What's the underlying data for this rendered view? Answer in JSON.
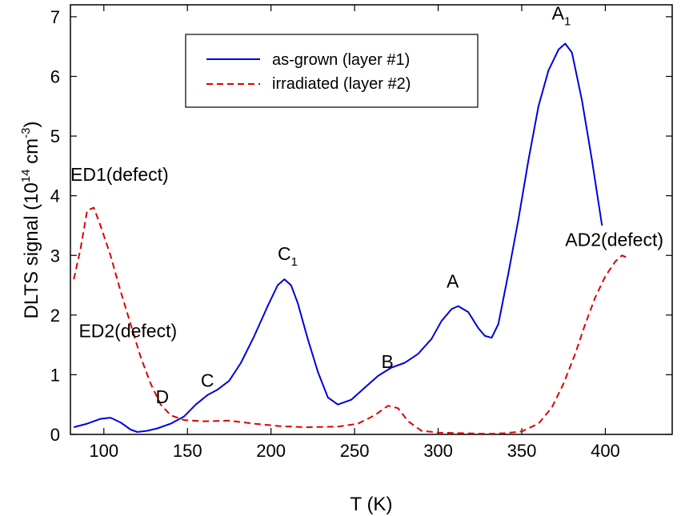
{
  "chart_data": {
    "type": "line",
    "xlabel": "T (K)",
    "ylabel_parts": [
      "DLTS signal (10",
      "14",
      " cm",
      "-3",
      ")"
    ],
    "xlim": [
      80,
      440
    ],
    "ylim": [
      0,
      7.2
    ],
    "x_ticks": [
      100,
      150,
      200,
      250,
      300,
      350,
      400
    ],
    "y_ticks": [
      0,
      1,
      2,
      3,
      4,
      5,
      6,
      7
    ],
    "grid": false,
    "legend_position": "top-left",
    "series": [
      {
        "name": "as-grown (layer #1)",
        "color": "#0000dd",
        "style": "solid",
        "points": [
          [
            82,
            0.12
          ],
          [
            90,
            0.18
          ],
          [
            98,
            0.26
          ],
          [
            104,
            0.28
          ],
          [
            110,
            0.2
          ],
          [
            116,
            0.08
          ],
          [
            120,
            0.04
          ],
          [
            126,
            0.06
          ],
          [
            132,
            0.1
          ],
          [
            140,
            0.18
          ],
          [
            148,
            0.3
          ],
          [
            155,
            0.5
          ],
          [
            162,
            0.66
          ],
          [
            168,
            0.75
          ],
          [
            175,
            0.9
          ],
          [
            182,
            1.2
          ],
          [
            190,
            1.65
          ],
          [
            198,
            2.15
          ],
          [
            204,
            2.5
          ],
          [
            208,
            2.6
          ],
          [
            212,
            2.5
          ],
          [
            216,
            2.2
          ],
          [
            222,
            1.6
          ],
          [
            228,
            1.05
          ],
          [
            234,
            0.62
          ],
          [
            240,
            0.5
          ],
          [
            248,
            0.58
          ],
          [
            256,
            0.78
          ],
          [
            264,
            0.98
          ],
          [
            272,
            1.12
          ],
          [
            280,
            1.2
          ],
          [
            288,
            1.35
          ],
          [
            296,
            1.6
          ],
          [
            302,
            1.9
          ],
          [
            308,
            2.1
          ],
          [
            312,
            2.15
          ],
          [
            318,
            2.05
          ],
          [
            324,
            1.78
          ],
          [
            328,
            1.65
          ],
          [
            332,
            1.62
          ],
          [
            336,
            1.85
          ],
          [
            342,
            2.7
          ],
          [
            348,
            3.6
          ],
          [
            354,
            4.6
          ],
          [
            360,
            5.5
          ],
          [
            366,
            6.1
          ],
          [
            372,
            6.45
          ],
          [
            376,
            6.55
          ],
          [
            380,
            6.4
          ],
          [
            386,
            5.6
          ],
          [
            392,
            4.6
          ],
          [
            398,
            3.5
          ]
        ]
      },
      {
        "name": "irradiated (layer #2)",
        "color": "#dd0000",
        "style": "dashed",
        "points": [
          [
            82,
            2.6
          ],
          [
            86,
            3.1
          ],
          [
            90,
            3.75
          ],
          [
            94,
            3.8
          ],
          [
            98,
            3.5
          ],
          [
            104,
            3.0
          ],
          [
            110,
            2.4
          ],
          [
            116,
            1.85
          ],
          [
            122,
            1.3
          ],
          [
            128,
            0.85
          ],
          [
            134,
            0.5
          ],
          [
            140,
            0.32
          ],
          [
            148,
            0.24
          ],
          [
            160,
            0.22
          ],
          [
            175,
            0.23
          ],
          [
            190,
            0.18
          ],
          [
            205,
            0.14
          ],
          [
            220,
            0.12
          ],
          [
            240,
            0.13
          ],
          [
            252,
            0.18
          ],
          [
            262,
            0.32
          ],
          [
            270,
            0.48
          ],
          [
            276,
            0.44
          ],
          [
            282,
            0.22
          ],
          [
            290,
            0.06
          ],
          [
            300,
            0.03
          ],
          [
            315,
            0.02
          ],
          [
            330,
            0.01
          ],
          [
            340,
            0.02
          ],
          [
            350,
            0.05
          ],
          [
            360,
            0.18
          ],
          [
            368,
            0.45
          ],
          [
            375,
            0.85
          ],
          [
            382,
            1.35
          ],
          [
            388,
            1.85
          ],
          [
            394,
            2.3
          ],
          [
            400,
            2.65
          ],
          [
            406,
            2.9
          ],
          [
            410,
            3.0
          ],
          [
            414,
            2.95
          ]
        ]
      }
    ],
    "annotations": [
      {
        "text": "ED1(defect)",
        "x": 80,
        "y": 4.25
      },
      {
        "text": "ED2(defect)",
        "x": 85,
        "y": 1.63
      },
      {
        "text": "D",
        "x": 131,
        "y": 0.52
      },
      {
        "text": "C",
        "x": 158,
        "y": 0.8
      },
      {
        "text": "C",
        "sub": "1",
        "x": 204,
        "y": 2.92
      },
      {
        "text": "B",
        "x": 266,
        "y": 1.11
      },
      {
        "text": "A",
        "x": 305,
        "y": 2.46
      },
      {
        "text": "A",
        "sub": "1",
        "x": 368,
        "y": 6.95
      },
      {
        "text": "AD2(defect)",
        "x": 376,
        "y": 3.16
      }
    ]
  }
}
